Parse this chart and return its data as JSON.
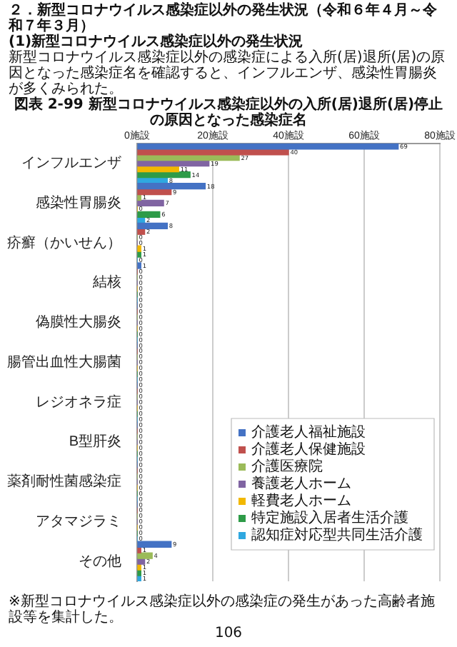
{
  "chart_data": {
    "type": "bar",
    "orientation": "horizontal",
    "title": "図表 2-99 新型コロナウイルス感染症以外の入所(居)退所(居)停止の原因となった感染症名",
    "annotations": [
      "２．新型コロナウイルス感染症以外の発生状況（令和６年４月～令和７年３月）",
      "(1)新型コロナウイルス感染症以外の発生状況",
      "新型コロナウイルス感染症以外の感染症による入所(居)退所(居)の原因となった感染症名を確認すると、インフルエンザ、感染性胃腸炎が多くみられた。",
      "※新型コロナウイルス感染症以外の感染症の発生があった高齢者施設等を集計した。",
      "106"
    ],
    "categories": [
      "インフルエンザ",
      "感染性胃腸炎",
      "疥癬（かいせん）",
      "結核",
      "偽膜性大腸炎",
      "腸管出血性大腸菌",
      "レジオネラ症",
      "B型肝炎",
      "薬剤耐性菌感染症",
      "アタマジラミ",
      "その他"
    ],
    "series": [
      {
        "name": "介護老人福祉施設",
        "color": "#4472c4",
        "values": [
          69,
          18,
          8,
          1,
          0,
          0,
          0,
          0,
          0,
          0,
          9
        ]
      },
      {
        "name": "介護老人保健施設",
        "color": "#c0504d",
        "values": [
          40,
          9,
          2,
          0,
          0,
          0,
          0,
          0,
          0,
          0,
          1
        ]
      },
      {
        "name": "介護医療院",
        "color": "#9bbb59",
        "values": [
          27,
          1,
          0,
          0,
          0,
          0,
          0,
          0,
          0,
          0,
          4
        ]
      },
      {
        "name": "養護老人ホーム",
        "color": "#8064a2",
        "values": [
          19,
          7,
          0,
          0,
          0,
          0,
          0,
          0,
          0,
          0,
          2
        ]
      },
      {
        "name": "軽費老人ホーム",
        "color": "#f2b800",
        "values": [
          11,
          0,
          1,
          0,
          0,
          0,
          0,
          0,
          0,
          0,
          1
        ]
      },
      {
        "name": "特定施設入居者生活介護",
        "color": "#2e9b48",
        "values": [
          14,
          6,
          1,
          0,
          0,
          0,
          0,
          0,
          0,
          0,
          1
        ]
      },
      {
        "name": "認知症対応型共同生活介護",
        "color": "#2fa8e0",
        "values": [
          8,
          2,
          0,
          0,
          0,
          0,
          0,
          0,
          0,
          0,
          1
        ]
      }
    ],
    "xlim": [
      0,
      80
    ],
    "xticks": [
      {
        "value": 0,
        "label": "0施設"
      },
      {
        "value": 20,
        "label": "20施設"
      },
      {
        "value": 40,
        "label": "40施設"
      },
      {
        "value": 60,
        "label": "60施設"
      },
      {
        "value": 80,
        "label": "80施設"
      }
    ],
    "grid": "x",
    "legend": "bottom right",
    "data_labels": true
  }
}
